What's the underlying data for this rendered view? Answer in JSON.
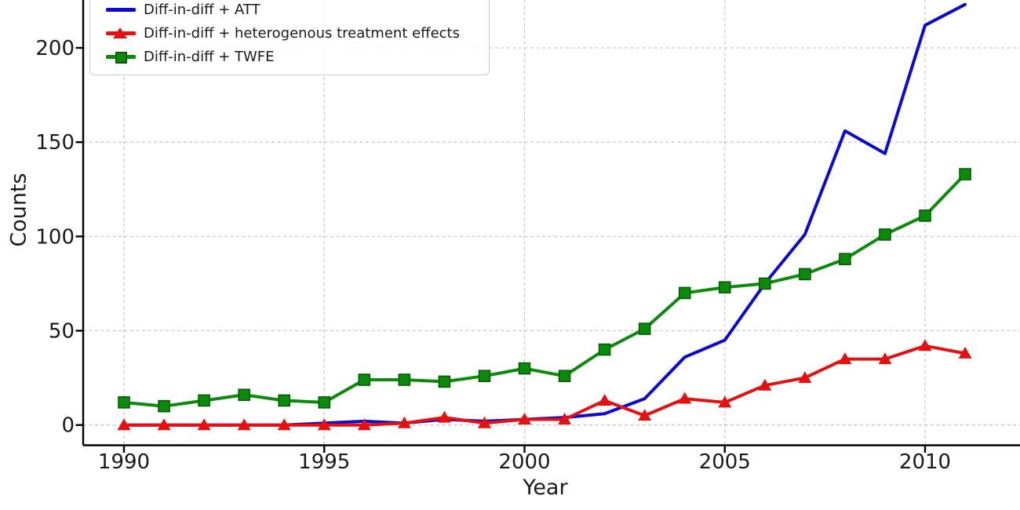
{
  "chart_data": {
    "type": "line",
    "title": "",
    "xlabel": "Year",
    "ylabel": "Counts",
    "grid": true,
    "legend_position": "upper-left",
    "xticks": [
      1990,
      1995,
      2000,
      2005,
      2010
    ],
    "yticks": [
      0,
      50,
      100,
      150,
      200
    ],
    "xlim": [
      1989,
      2012.4
    ],
    "ylim": [
      -10,
      225
    ],
    "x": [
      1990,
      1991,
      1992,
      1993,
      1994,
      1995,
      1996,
      1997,
      1998,
      1999,
      2000,
      2001,
      2002,
      2003,
      2004,
      2005,
      2006,
      2007,
      2008,
      2009,
      2010,
      2011
    ],
    "series": [
      {
        "name": "Diff-in-diff + ATT",
        "color": "#0b0bd0",
        "marker": "none",
        "values": [
          0,
          0,
          0,
          0,
          0,
          1,
          2,
          1,
          3,
          2,
          3,
          4,
          6,
          14,
          36,
          45,
          75,
          101,
          156,
          144,
          212,
          223
        ]
      },
      {
        "name": "Diff-in-diff + heterogenous treatment effects",
        "color": "#e31212",
        "marker": "triangle",
        "values": [
          0,
          0,
          0,
          0,
          0,
          0,
          0,
          1,
          4,
          1,
          3,
          3,
          13,
          5,
          14,
          12,
          21,
          25,
          35,
          35,
          42,
          38
        ]
      },
      {
        "name": "Diff-in-diff + TWFE",
        "color": "#0b8a0b",
        "marker": "square",
        "marker_edge": "#055c05",
        "values": [
          12,
          10,
          13,
          16,
          13,
          12,
          24,
          24,
          23,
          26,
          30,
          26,
          40,
          51,
          70,
          73,
          75,
          80,
          88,
          101,
          111,
          133
        ]
      }
    ]
  },
  "colors": {
    "grid": "#c9c9c9",
    "axis": "#000000",
    "text": "#1a1a1a",
    "legend_border": "#cccccc",
    "legend_bg": "rgba(255,255,255,0.82)"
  }
}
